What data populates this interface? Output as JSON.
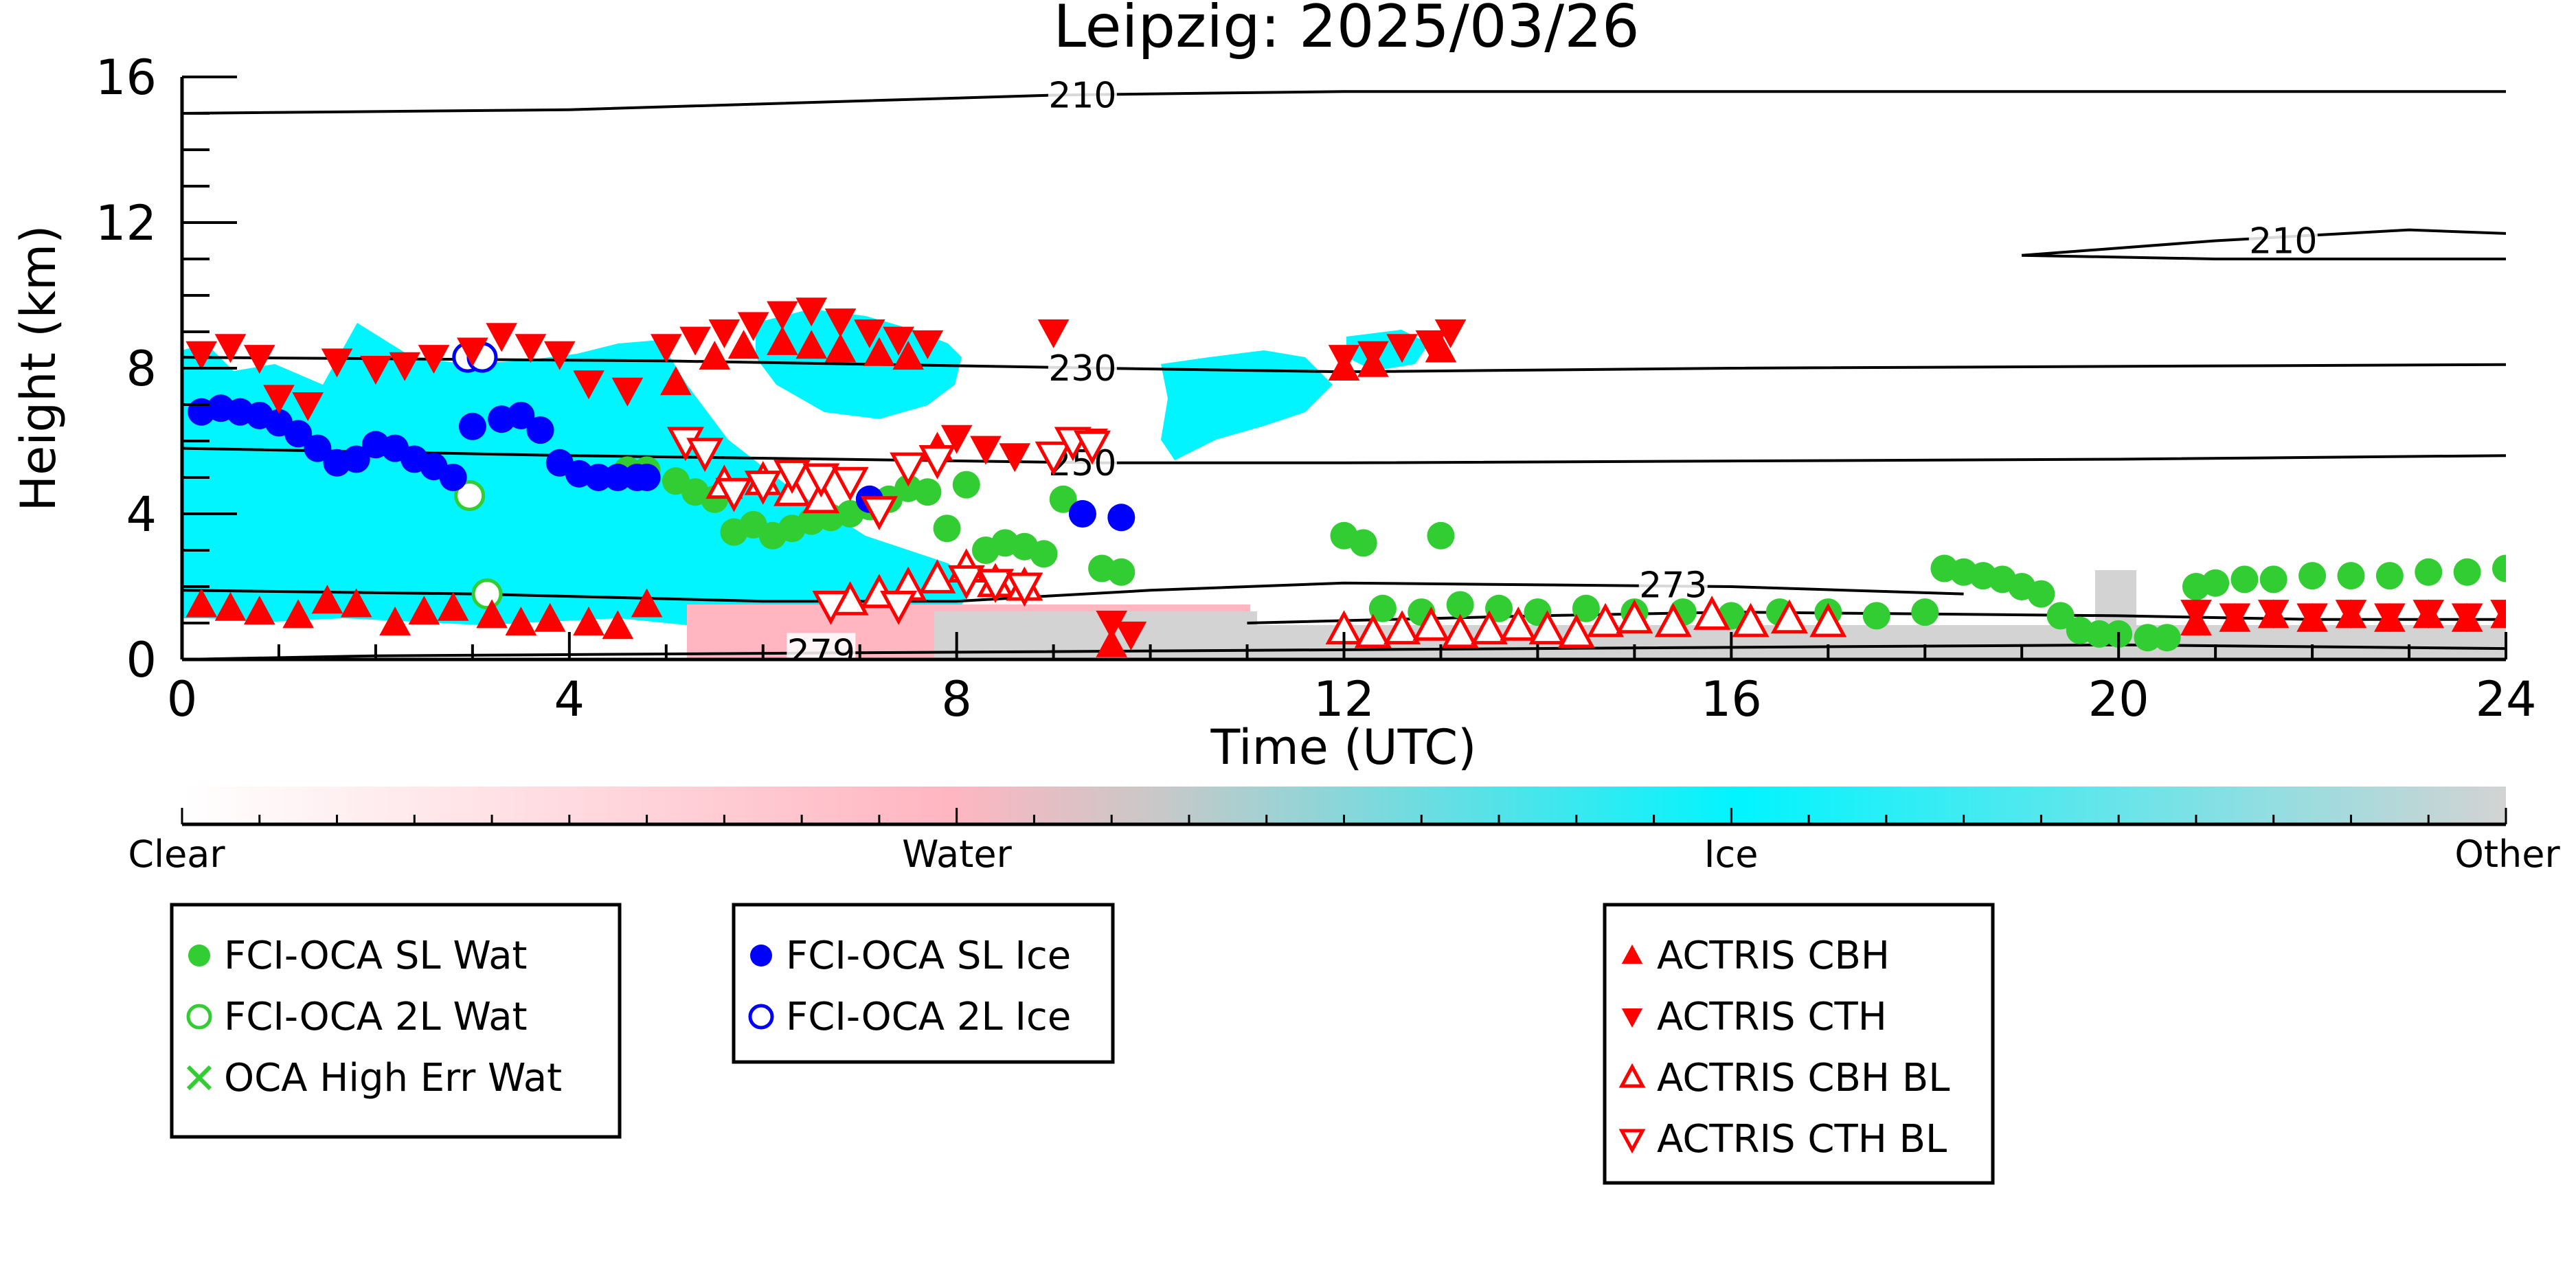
{
  "chart_data": {
    "type": "scatter",
    "title": "Leipzig: 2025/03/26",
    "xlabel": "Time (UTC)",
    "ylabel": "Height (km)",
    "xlim": [
      0,
      24
    ],
    "ylim": [
      0,
      16
    ],
    "xticks": [
      0,
      4,
      8,
      12,
      16,
      20,
      24
    ],
    "yticks": [
      0,
      4,
      8,
      12,
      16
    ],
    "colors": {
      "clear": "#ffffff",
      "water": "#ffb6c1",
      "ice": "#00f5ff",
      "other": "#d3d3d3",
      "oca_wat": "#32cd32",
      "oca_ice": "#0000ff",
      "actris": "#ff0000"
    },
    "classification_colorbar": {
      "labels": [
        "Clear",
        "Water",
        "Ice",
        "Other"
      ]
    },
    "temperature_contours": [
      {
        "label": "210",
        "points": [
          [
            0,
            15.0
          ],
          [
            4,
            15.1
          ],
          [
            9,
            15.5
          ],
          [
            12,
            15.6
          ],
          [
            16,
            15.6
          ],
          [
            24,
            15.6
          ]
        ]
      },
      {
        "label": "210",
        "points": [
          [
            19,
            11.1
          ],
          [
            21,
            11.5
          ],
          [
            23,
            11.8
          ],
          [
            24,
            11.7
          ]
        ]
      },
      {
        "label": "210",
        "points": [
          [
            19,
            11.1
          ],
          [
            21,
            11.0
          ],
          [
            24,
            11.0
          ]
        ]
      },
      {
        "label": "230",
        "points": [
          [
            0,
            8.3
          ],
          [
            5,
            8.2
          ],
          [
            9.5,
            8.0
          ],
          [
            12,
            7.9
          ],
          [
            16,
            8.0
          ],
          [
            24,
            8.1
          ]
        ]
      },
      {
        "label": "250",
        "points": [
          [
            0,
            5.8
          ],
          [
            4,
            5.6
          ],
          [
            9.5,
            5.4
          ],
          [
            12,
            5.4
          ],
          [
            20,
            5.5
          ],
          [
            24,
            5.6
          ]
        ]
      },
      {
        "label": "273",
        "points": [
          [
            0,
            1.9
          ],
          [
            3,
            1.8
          ],
          [
            4.5,
            1.7
          ],
          [
            6,
            1.6
          ],
          [
            8,
            1.6
          ],
          [
            10,
            1.9
          ],
          [
            12,
            2.1
          ],
          [
            16,
            2.0
          ],
          [
            18.4,
            1.8
          ]
        ]
      },
      {
        "label": "273",
        "points": [
          [
            11,
            1.0
          ],
          [
            14,
            1.2
          ],
          [
            16,
            1.3
          ],
          [
            20,
            1.2
          ],
          [
            22,
            1.1
          ],
          [
            24,
            1.1
          ]
        ]
      },
      {
        "label": "279",
        "points": [
          [
            0,
            0.0
          ],
          [
            2,
            0.1
          ],
          [
            5,
            0.15
          ],
          [
            8,
            0.2
          ],
          [
            14,
            0.3
          ],
          [
            20,
            0.4
          ],
          [
            24,
            0.3
          ]
        ]
      }
    ],
    "series": [
      {
        "name": "FCI-OCA SL Wat",
        "marker": "circle-filled",
        "color": "#32cd32",
        "x": [
          4.6,
          4.8,
          5.1,
          5.3,
          5.5,
          5.7,
          5.9,
          6.1,
          6.3,
          6.5,
          6.7,
          6.9,
          7.1,
          7.3,
          7.5,
          7.7,
          7.9,
          8.1,
          8.3,
          8.5,
          8.7,
          8.9,
          9.1,
          9.3,
          9.5,
          9.7,
          12.0,
          12.2,
          13.0,
          12.4,
          12.8,
          13.2,
          13.6,
          14.0,
          14.5,
          15.0,
          15.5,
          16.0,
          16.5,
          17.0,
          17.5,
          18.0,
          18.2,
          18.4,
          18.6,
          18.8,
          19.0,
          19.2,
          19.4,
          19.6,
          19.8,
          20.0,
          20.3,
          20.5,
          20.8,
          21.0,
          21.3,
          21.6,
          22.0,
          22.4,
          22.8,
          23.2,
          23.6,
          24.0
        ],
        "y": [
          5.2,
          5.2,
          4.9,
          4.6,
          4.4,
          3.5,
          3.7,
          3.4,
          3.6,
          3.8,
          3.9,
          4.0,
          4.2,
          4.4,
          4.7,
          4.6,
          3.6,
          4.8,
          3.0,
          3.2,
          3.1,
          2.9,
          4.4,
          4.0,
          2.5,
          2.4,
          3.4,
          3.2,
          3.4,
          1.4,
          1.3,
          1.5,
          1.4,
          1.3,
          1.4,
          1.3,
          1.3,
          1.2,
          1.3,
          1.3,
          1.2,
          1.3,
          2.5,
          2.4,
          2.3,
          2.2,
          2.0,
          1.8,
          1.2,
          0.8,
          0.7,
          0.7,
          0.6,
          0.6,
          2.0,
          2.1,
          2.2,
          2.2,
          2.3,
          2.3,
          2.3,
          2.4,
          2.4,
          2.5
        ]
      },
      {
        "name": "FCI-OCA 2L Wat",
        "marker": "circle-open",
        "color": "#32cd32",
        "x": [
          2.97,
          3.15
        ],
        "y": [
          4.5,
          1.8
        ]
      },
      {
        "name": "OCA High Err Wat",
        "marker": "x",
        "color": "#32cd32",
        "x": [],
        "y": []
      },
      {
        "name": "FCI-OCA SL Ice",
        "marker": "circle-filled",
        "color": "#0000ff",
        "x": [
          0.2,
          0.4,
          0.6,
          0.8,
          1.0,
          1.2,
          1.4,
          1.6,
          1.8,
          2.0,
          2.2,
          2.4,
          2.6,
          2.8,
          3.0,
          3.3,
          3.5,
          3.7,
          3.9,
          4.1,
          4.3,
          4.5,
          4.7,
          4.8,
          7.1,
          9.3,
          9.7
        ],
        "y": [
          6.8,
          6.9,
          6.8,
          6.7,
          6.5,
          6.2,
          5.8,
          5.4,
          5.5,
          5.9,
          5.8,
          5.5,
          5.3,
          5.0,
          6.4,
          6.6,
          6.7,
          6.3,
          5.4,
          5.1,
          5.0,
          5.0,
          5.0,
          5.0,
          4.4,
          4.0,
          3.9
        ]
      },
      {
        "name": "FCI-OCA 2L Ice",
        "marker": "circle-open",
        "color": "#0000ff",
        "x": [
          2.95,
          3.1
        ],
        "y": [
          8.3,
          8.3
        ]
      },
      {
        "name": "ACTRIS CBH",
        "marker": "triangle-up-filled",
        "color": "#ff0000",
        "x": [
          0.2,
          0.5,
          0.8,
          1.2,
          1.5,
          1.8,
          2.2,
          2.5,
          2.8,
          3.2,
          3.5,
          3.8,
          4.2,
          4.5,
          4.8,
          5.1,
          5.5,
          5.8,
          6.2,
          6.5,
          6.8,
          7.2,
          7.5,
          7.8,
          9.6,
          12.0,
          12.3,
          13.0,
          20.8,
          21.2,
          21.6,
          22.0,
          22.4,
          22.8,
          23.2,
          23.6,
          24.0
        ],
        "y": [
          1.5,
          1.4,
          1.3,
          1.2,
          1.6,
          1.5,
          1.0,
          1.3,
          1.4,
          1.2,
          1.0,
          1.1,
          1.0,
          0.9,
          1.5,
          7.6,
          8.3,
          8.6,
          8.7,
          8.6,
          8.5,
          8.4,
          8.3,
          5.8,
          0.4,
          8.0,
          8.1,
          8.5,
          1.0,
          1.1,
          1.2,
          1.1,
          1.2,
          1.1,
          1.2,
          1.1,
          1.2
        ]
      },
      {
        "name": "ACTRIS CTH",
        "marker": "triangle-down-filled",
        "color": "#ff0000",
        "x": [
          0.2,
          0.5,
          0.8,
          1.0,
          1.3,
          1.6,
          2.0,
          2.3,
          2.6,
          3.0,
          3.3,
          3.6,
          3.9,
          4.2,
          4.6,
          5.0,
          5.3,
          5.6,
          5.9,
          6.2,
          6.5,
          6.8,
          7.1,
          7.4,
          7.7,
          8.0,
          8.3,
          8.6,
          9.0,
          9.4,
          9.6,
          9.8,
          12.0,
          12.3,
          12.6,
          12.9,
          13.1,
          20.8,
          21.2,
          21.6,
          22.0,
          22.4,
          22.8,
          23.2,
          23.6,
          24.0
        ],
        "y": [
          8.4,
          8.6,
          8.3,
          7.2,
          7.0,
          8.2,
          8.0,
          8.1,
          8.3,
          8.5,
          8.9,
          8.6,
          8.4,
          7.6,
          7.4,
          8.6,
          8.8,
          9.0,
          9.2,
          9.5,
          9.6,
          9.3,
          9.0,
          8.8,
          8.7,
          6.1,
          5.8,
          5.6,
          9.0,
          6.0,
          1.0,
          0.7,
          8.3,
          8.4,
          8.6,
          8.7,
          9.0,
          1.3,
          1.2,
          1.3,
          1.2,
          1.3,
          1.2,
          1.3,
          1.2,
          1.3
        ]
      },
      {
        "name": "ACTRIS CBH BL",
        "marker": "triangle-up-open",
        "color": "#ff0000",
        "x": [
          5.6,
          6.0,
          6.3,
          6.6,
          6.9,
          7.2,
          7.5,
          7.8,
          8.1,
          8.4,
          8.7,
          12.0,
          12.3,
          12.6,
          12.9,
          13.2,
          13.5,
          13.8,
          14.1,
          14.4,
          14.7,
          15.0,
          15.4,
          15.8,
          16.2,
          16.6,
          17.0
        ],
        "y": [
          4.8,
          4.9,
          4.6,
          4.4,
          1.6,
          1.8,
          2.0,
          2.2,
          2.5,
          2.1,
          2.0,
          0.8,
          0.7,
          0.8,
          0.9,
          0.7,
          0.8,
          0.9,
          0.8,
          0.7,
          1.0,
          1.1,
          1.0,
          1.2,
          1.0,
          1.1,
          1.0
        ]
      },
      {
        "name": "ACTRIS CTH BL",
        "marker": "triangle-down-open",
        "color": "#ff0000",
        "x": [
          5.2,
          5.4,
          5.7,
          6.0,
          6.3,
          6.6,
          6.9,
          7.2,
          7.5,
          7.8,
          8.1,
          8.4,
          8.7,
          9.0,
          9.2,
          9.4,
          6.7,
          7.4
        ],
        "y": [
          6.0,
          5.7,
          4.6,
          4.8,
          5.1,
          5.0,
          4.9,
          4.1,
          5.3,
          5.5,
          2.2,
          2.1,
          2.0,
          5.6,
          6.0,
          5.9,
          1.5,
          1.5
        ]
      }
    ],
    "legends": [
      [
        "FCI-OCA SL Wat",
        "FCI-OCA 2L Wat",
        "OCA High Err Wat"
      ],
      [
        "FCI-OCA SL Ice",
        "FCI-OCA 2L Ice"
      ],
      [
        "ACTRIS CBH",
        "ACTRIS CTH",
        "ACTRIS CBH BL",
        "ACTRIS CTH BL"
      ]
    ]
  }
}
